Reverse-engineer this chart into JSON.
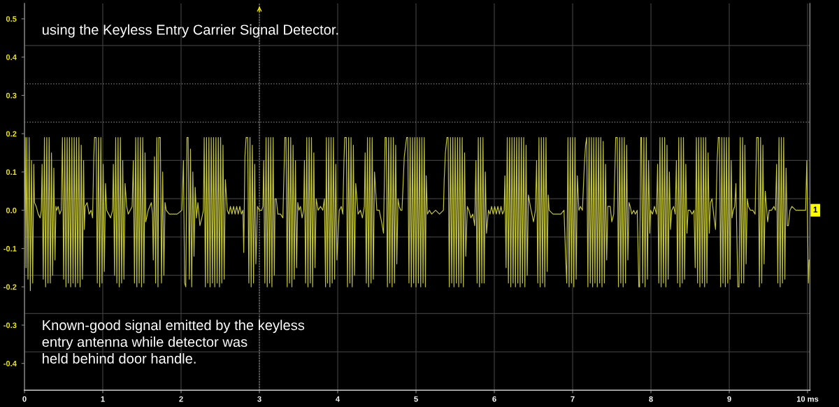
{
  "chart_data": {
    "type": "line",
    "xlim": [
      0,
      10.03
    ],
    "ylim": [
      -0.47,
      0.54
    ],
    "xticks": [
      0,
      1,
      2,
      3,
      4,
      5,
      6,
      7,
      8,
      9,
      {
        "value": 10,
        "label": "10 ms"
      }
    ],
    "yticks": [
      0.5,
      0.4,
      0.3,
      0.2,
      0.1,
      {
        "value": 0,
        "label": "0.0"
      },
      -0.1,
      -0.2,
      -0.3,
      -0.4
    ],
    "grid": "x",
    "ref_lines": [
      {
        "axis": "x",
        "value": 3,
        "color": "#9a9a9a",
        "line_style": "dotted"
      },
      {
        "axis": "y",
        "value": 0.43,
        "color": "#3c3c3c",
        "line_style": "solid"
      },
      {
        "axis": "y",
        "value": 0.33,
        "color": "#8c8c8c",
        "line_style": "dotted"
      },
      {
        "axis": "y",
        "value": 0.23,
        "color": "#8c8c8c",
        "line_style": "dotted"
      },
      {
        "axis": "y",
        "value": 0.13,
        "color": "#3c3c3c",
        "line_style": "solid"
      },
      {
        "axis": "y",
        "value": 0.03,
        "color": "#3c3c3c",
        "line_style": "solid"
      },
      {
        "axis": "y",
        "value": -0.07,
        "color": "#3c3c3c",
        "line_style": "solid"
      },
      {
        "axis": "y",
        "value": -0.17,
        "color": "#3c3c3c",
        "line_style": "solid"
      },
      {
        "axis": "y",
        "value": -0.27,
        "color": "#3c3c3c",
        "line_style": "solid"
      },
      {
        "axis": "y",
        "value": -0.37,
        "color": "#3c3c3c",
        "line_style": "solid"
      }
    ],
    "annotations": [
      "using the Keyless Entry Carrier Signal Detector.",
      "Known-good signal emitted by the keyless\nentry antenna while detector was\nheld behind door handle.",
      {
        "text": "1",
        "y": 0
      }
    ],
    "series": [
      {
        "color": "#c4c43a",
        "x": [
          0.0,
          0.01,
          0.02,
          0.03,
          0.045,
          0.06,
          0.075,
          0.09,
          0.105,
          0.119,
          0.128,
          0.15,
          0.175,
          0.2,
          0.215,
          0.225,
          0.24,
          0.255,
          0.27,
          0.285,
          0.3,
          0.315,
          0.33,
          0.345,
          0.36,
          0.375,
          0.39,
          0.402,
          0.41,
          0.43,
          0.45,
          0.47,
          0.485,
          0.5,
          0.515,
          0.53,
          0.545,
          0.56,
          0.575,
          0.59,
          0.605,
          0.62,
          0.635,
          0.65,
          0.665,
          0.68,
          0.695,
          0.71,
          0.725,
          0.74,
          0.755,
          0.765,
          0.775,
          0.8,
          0.825,
          0.85,
          0.87,
          0.885,
          0.895,
          0.915,
          0.93,
          0.945,
          0.96,
          0.975,
          0.99,
          1.005,
          1.02,
          1.035,
          1.05,
          1.075,
          1.1,
          1.125,
          1.135,
          1.15,
          1.165,
          1.18,
          1.195,
          1.21,
          1.225,
          1.24,
          1.255,
          1.27,
          1.285,
          1.305,
          1.325,
          1.35,
          1.375,
          1.39,
          1.405,
          1.42,
          1.435,
          1.45,
          1.465,
          1.48,
          1.495,
          1.51,
          1.525,
          1.54,
          1.548,
          1.56,
          1.58,
          1.6,
          1.62,
          1.635,
          1.645,
          1.66,
          1.675,
          1.69,
          1.705,
          1.715,
          1.735,
          1.75,
          1.765,
          1.78,
          1.795,
          1.81,
          1.85,
          1.95,
          2.01,
          2.03,
          2.045,
          2.06,
          2.075,
          2.09,
          2.105,
          2.12,
          2.135,
          2.15,
          2.165,
          2.18,
          2.197,
          2.215,
          2.24,
          2.265,
          2.285,
          2.295,
          2.31,
          2.325,
          2.34,
          2.355,
          2.37,
          2.385,
          2.4,
          2.415,
          2.43,
          2.445,
          2.46,
          2.475,
          2.49,
          2.505,
          2.52,
          2.535,
          2.55,
          2.565,
          2.59,
          2.61,
          2.63,
          2.65,
          2.67,
          2.69,
          2.71,
          2.73,
          2.75,
          2.77,
          2.79,
          2.8,
          2.815,
          2.83,
          2.85,
          2.865,
          2.88,
          2.895,
          2.91,
          2.925,
          2.94,
          2.955,
          2.975,
          3.0,
          3.03,
          3.045,
          3.055,
          3.07,
          3.085,
          3.1,
          3.115,
          3.13,
          3.145,
          3.16,
          3.175,
          3.19,
          3.2,
          3.215,
          3.235,
          3.27,
          3.3,
          3.325,
          3.34,
          3.355,
          3.37,
          3.385,
          3.4,
          3.415,
          3.43,
          3.445,
          3.46,
          3.475,
          3.49,
          3.505,
          3.525,
          3.545,
          3.565,
          3.575,
          3.59,
          3.605,
          3.62,
          3.635,
          3.65,
          3.665,
          3.68,
          3.695,
          3.71,
          3.725,
          3.75,
          3.78,
          3.81,
          3.83,
          3.845,
          3.855,
          3.87,
          3.885,
          3.9,
          3.915,
          3.93,
          3.945,
          3.96,
          3.975,
          3.99,
          4.02,
          4.045,
          4.065,
          4.08,
          4.09,
          4.11,
          4.125,
          4.14,
          4.155,
          4.17,
          4.185,
          4.2,
          4.215,
          4.23,
          4.26,
          4.29,
          4.315,
          4.34,
          4.35,
          4.365,
          4.38,
          4.395,
          4.41,
          4.425,
          4.44,
          4.455,
          4.47,
          4.5,
          4.53,
          4.56,
          4.585,
          4.605,
          4.62,
          4.635,
          4.65,
          4.665,
          4.68,
          4.695,
          4.71,
          4.725,
          4.74,
          4.755,
          4.77,
          4.785,
          4.805,
          4.821,
          4.85,
          4.88,
          4.895,
          4.91,
          4.925,
          4.94,
          4.955,
          4.97,
          4.985,
          5.0,
          5.015,
          5.03,
          5.045,
          5.06,
          5.075,
          5.09,
          5.105,
          5.12,
          5.13,
          5.145,
          5.17,
          5.2,
          5.25,
          5.3,
          5.35,
          5.36,
          5.375,
          5.395,
          5.41,
          5.425,
          5.44,
          5.455,
          5.47,
          5.485,
          5.5,
          5.515,
          5.53,
          5.545,
          5.56,
          5.575,
          5.59,
          5.605,
          5.62,
          5.635,
          5.655,
          5.675,
          5.7,
          5.725,
          5.75,
          5.765,
          5.78,
          5.795,
          5.81,
          5.825,
          5.84,
          5.855,
          5.87,
          5.885,
          5.9,
          5.925,
          5.945,
          5.965,
          5.985,
          6.005,
          6.025,
          6.045,
          6.065,
          6.085,
          6.105,
          6.125,
          6.135,
          6.15,
          6.165,
          6.18,
          6.195,
          6.21,
          6.225,
          6.24,
          6.255,
          6.27,
          6.285,
          6.3,
          6.315,
          6.33,
          6.345,
          6.36,
          6.375,
          6.39,
          6.405,
          6.42,
          6.435,
          6.46,
          6.48,
          6.5,
          6.525,
          6.54,
          6.555,
          6.57,
          6.585,
          6.6,
          6.615,
          6.63,
          6.645,
          6.66,
          6.675,
          6.688,
          6.7,
          6.75,
          6.8,
          6.85,
          6.89,
          6.91,
          6.925,
          6.94,
          6.955,
          6.97,
          6.985,
          7.0,
          7.015,
          7.03,
          7.045,
          7.06,
          7.08,
          7.1,
          7.125,
          7.15,
          7.165,
          7.18,
          7.195,
          7.21,
          7.225,
          7.24,
          7.255,
          7.27,
          7.285,
          7.3,
          7.315,
          7.33,
          7.345,
          7.36,
          7.375,
          7.39,
          7.405,
          7.42,
          7.435,
          7.45,
          7.48,
          7.5,
          7.525,
          7.55,
          7.57,
          7.585,
          7.6,
          7.615,
          7.63,
          7.645,
          7.66,
          7.675,
          7.69,
          7.705,
          7.72,
          7.735,
          7.755,
          7.78,
          7.8,
          7.825,
          7.845,
          7.855,
          7.87,
          7.88,
          7.895,
          7.91,
          7.925,
          7.94,
          7.955,
          7.97,
          7.985,
          7.995,
          8.02,
          8.045,
          8.07,
          8.085,
          8.1,
          8.115,
          8.13,
          8.145,
          8.16,
          8.175,
          8.19,
          8.205,
          8.22,
          8.235,
          8.25,
          8.265,
          8.29,
          8.31,
          8.325,
          8.34,
          8.355,
          8.37,
          8.385,
          8.4,
          8.415,
          8.43,
          8.445,
          8.46,
          8.475,
          8.5,
          8.525,
          8.55,
          8.565,
          8.58,
          8.595,
          8.61,
          8.625,
          8.64,
          8.655,
          8.67,
          8.685,
          8.7,
          8.715,
          8.73,
          8.745,
          8.76,
          8.78,
          8.8,
          8.825,
          8.845,
          8.86,
          8.875,
          8.89,
          8.905,
          8.92,
          8.935,
          8.95,
          8.965,
          8.98,
          8.995,
          9.01,
          9.025,
          9.035,
          9.05,
          9.07,
          9.085,
          9.1,
          9.11,
          9.125,
          9.14,
          9.155,
          9.17,
          9.185,
          9.2,
          9.215,
          9.23,
          9.245,
          9.27,
          9.3,
          9.33,
          9.35,
          9.37,
          9.385,
          9.4,
          9.415,
          9.43,
          9.445,
          9.46,
          9.475,
          9.49,
          9.51,
          9.54,
          9.57,
          9.59,
          9.605,
          9.62,
          9.635,
          9.65,
          9.665,
          9.68,
          9.695,
          9.71,
          9.725,
          9.74,
          9.755,
          9.775,
          9.8,
          9.85,
          9.9,
          9.95,
          9.975,
          9.99,
          10.01,
          10.02
        ],
        "values": [
          0.0,
          0.19,
          -0.15,
          0.19,
          -0.18,
          0.19,
          -0.21,
          0.13,
          -0.19,
          0.12,
          0.02,
          0.01,
          -0.01,
          -0.02,
          0.0,
          0.12,
          -0.18,
          0.19,
          -0.2,
          0.19,
          -0.19,
          0.19,
          -0.19,
          0.15,
          -0.17,
          0.11,
          -0.13,
          0.01,
          0.0,
          0.01,
          -0.01,
          0.0,
          0.19,
          -0.18,
          0.19,
          -0.2,
          0.19,
          -0.19,
          0.19,
          -0.2,
          0.19,
          -0.19,
          0.19,
          -0.2,
          0.19,
          -0.19,
          0.19,
          -0.2,
          0.17,
          -0.18,
          0.13,
          -0.05,
          0.01,
          0.02,
          -0.01,
          0.0,
          -0.02,
          0.14,
          0.19,
          0.19,
          -0.19,
          0.19,
          -0.2,
          0.19,
          -0.19,
          0.12,
          -0.16,
          0.07,
          0.0,
          -0.01,
          -0.02,
          0.0,
          0.12,
          -0.17,
          0.19,
          -0.19,
          0.19,
          -0.2,
          0.19,
          -0.19,
          0.13,
          -0.18,
          0.07,
          0.01,
          -0.01,
          0.0,
          0.01,
          0.13,
          -0.19,
          0.19,
          -0.2,
          0.19,
          -0.19,
          0.19,
          -0.2,
          0.19,
          -0.19,
          0.15,
          -0.03,
          -0.02,
          0.0,
          0.01,
          0.02,
          -0.01,
          -0.13,
          0.14,
          -0.19,
          0.19,
          -0.2,
          0.19,
          0.19,
          -0.19,
          0.1,
          -0.17,
          0.02,
          0.0,
          -0.01,
          -0.01,
          0.0,
          0.13,
          -0.19,
          -0.2,
          0.19,
          0.19,
          -0.18,
          0.16,
          -0.2,
          0.1,
          -0.12,
          0.06,
          -0.02,
          0.02,
          -0.04,
          -0.02,
          0.0,
          0.19,
          -0.2,
          0.19,
          -0.19,
          0.19,
          -0.2,
          0.19,
          -0.19,
          0.19,
          -0.2,
          0.19,
          -0.19,
          0.19,
          -0.2,
          0.19,
          -0.19,
          0.17,
          -0.18,
          0.08,
          0.0,
          -0.01,
          0.01,
          -0.01,
          0.01,
          -0.01,
          0.01,
          -0.01,
          0.01,
          -0.01,
          0.0,
          -0.11,
          0.14,
          0.19,
          0.19,
          -0.19,
          0.19,
          -0.2,
          0.17,
          -0.19,
          0.12,
          -0.14,
          0.01,
          0.0,
          0.0,
          0.01,
          0.13,
          -0.19,
          0.19,
          -0.2,
          0.19,
          -0.19,
          0.19,
          -0.2,
          0.19,
          -0.17,
          0.03,
          0.03,
          -0.01,
          -0.01,
          -0.02,
          0.19,
          0.19,
          -0.2,
          0.19,
          -0.19,
          0.19,
          -0.2,
          0.17,
          -0.18,
          0.13,
          -0.15,
          0.02,
          0.0,
          0.01,
          -0.02,
          0.0,
          0.13,
          -0.19,
          0.19,
          -0.2,
          0.19,
          -0.19,
          0.19,
          -0.2,
          0.15,
          -0.15,
          0.03,
          0.0,
          0.01,
          0.0,
          0.03,
          -0.2,
          0.19,
          -0.19,
          0.19,
          -0.2,
          0.19,
          -0.19,
          0.19,
          -0.18,
          0.12,
          -0.13,
          0.0,
          0.01,
          -0.01,
          0.13,
          0.19,
          0.19,
          -0.2,
          0.19,
          -0.19,
          0.19,
          -0.2,
          0.17,
          -0.17,
          0.07,
          -0.01,
          0.0,
          -0.02,
          0.01,
          0.15,
          -0.19,
          0.19,
          -0.2,
          0.19,
          -0.19,
          0.19,
          -0.18,
          0.1,
          0.0,
          0.0,
          -0.03,
          -0.06,
          0.19,
          0.19,
          -0.2,
          0.19,
          -0.19,
          0.19,
          -0.2,
          0.19,
          -0.19,
          0.17,
          -0.14,
          0.03,
          0.01,
          0.0,
          0.0,
          0.14,
          0.19,
          0.19,
          -0.19,
          0.19,
          -0.2,
          0.19,
          -0.19,
          0.19,
          -0.2,
          0.19,
          -0.19,
          0.19,
          -0.2,
          0.19,
          -0.19,
          0.19,
          -0.2,
          0.09,
          -0.01,
          0.0,
          -0.01,
          0.0,
          -0.01,
          0.0,
          0.08,
          0.15,
          0.19,
          0.19,
          -0.2,
          0.19,
          -0.19,
          0.19,
          -0.2,
          0.19,
          -0.19,
          0.19,
          -0.2,
          0.19,
          -0.19,
          0.19,
          -0.2,
          0.15,
          -0.12,
          0.01,
          0.0,
          -0.02,
          -0.01,
          -0.04,
          0.13,
          -0.19,
          0.19,
          -0.2,
          0.19,
          -0.19,
          0.19,
          -0.19,
          0.1,
          -0.06,
          0.0,
          -0.01,
          0.01,
          -0.01,
          0.01,
          -0.01,
          0.01,
          -0.01,
          0.01,
          -0.01,
          0.0,
          0.09,
          -0.15,
          0.19,
          -0.19,
          0.19,
          -0.2,
          0.19,
          -0.19,
          0.19,
          -0.2,
          0.19,
          -0.19,
          0.19,
          -0.2,
          0.19,
          -0.19,
          0.19,
          -0.2,
          0.17,
          -0.17,
          0.04,
          0.01,
          -0.01,
          -0.03,
          0.0,
          0.13,
          -0.19,
          0.19,
          -0.2,
          0.19,
          -0.19,
          0.19,
          -0.2,
          0.19,
          -0.16,
          0.04,
          0.0,
          -0.01,
          -0.01,
          -0.01,
          0.0,
          -0.12,
          -0.19,
          0.19,
          -0.2,
          0.19,
          -0.19,
          0.19,
          -0.2,
          0.19,
          -0.18,
          0.09,
          0.0,
          0.01,
          0.0,
          0.12,
          0.17,
          0.19,
          -0.2,
          0.19,
          -0.19,
          0.19,
          -0.2,
          0.19,
          -0.19,
          0.19,
          -0.2,
          0.19,
          -0.19,
          0.19,
          -0.2,
          0.18,
          -0.19,
          0.12,
          -0.13,
          0.01,
          0.01,
          -0.03,
          -0.01,
          0.19,
          0.19,
          -0.2,
          0.19,
          -0.19,
          0.19,
          -0.2,
          0.19,
          -0.19,
          0.17,
          -0.13,
          0.02,
          0.01,
          -0.01,
          0.0,
          -0.01,
          0.0,
          -0.2,
          -0.2,
          0.19,
          0.19,
          -0.19,
          0.19,
          -0.2,
          0.19,
          -0.18,
          0.13,
          -0.06,
          0.0,
          -0.01,
          0.01,
          -0.01,
          0.12,
          -0.19,
          0.19,
          -0.2,
          0.19,
          -0.19,
          0.19,
          -0.2,
          0.17,
          -0.18,
          0.1,
          -0.05,
          0.0,
          0.01,
          -0.01,
          0.13,
          -0.19,
          0.19,
          -0.2,
          0.19,
          -0.19,
          0.19,
          -0.18,
          0.12,
          -0.06,
          0.0,
          0.0,
          -0.01,
          0.0,
          -0.15,
          0.19,
          -0.19,
          0.19,
          -0.2,
          0.19,
          -0.19,
          0.19,
          -0.2,
          0.19,
          -0.19,
          0.15,
          -0.06,
          0.02,
          0.03,
          -0.01,
          -0.05,
          0.13,
          0.19,
          0.19,
          -0.2,
          0.19,
          -0.19,
          0.19,
          -0.2,
          0.19,
          -0.19,
          0.19,
          -0.18,
          0.13,
          -0.02,
          0.0,
          0.01,
          0.07,
          -0.1,
          -0.2,
          -0.2,
          0.19,
          -0.19,
          0.19,
          -0.19,
          0.17,
          -0.14,
          0.03,
          0.01,
          0.0,
          0.0,
          -0.01,
          0.19,
          0.19,
          -0.2,
          0.19,
          -0.19,
          0.17,
          -0.14,
          0.05,
          0.01,
          -0.03,
          0.0,
          0.0,
          0.01,
          0.0,
          0.12,
          -0.19,
          0.19,
          -0.2,
          0.19,
          -0.19,
          0.19,
          -0.18,
          0.11,
          -0.04,
          -0.04,
          0.0,
          0.01,
          0.0,
          0.0,
          0.0,
          0.0,
          0.13,
          -0.19,
          -0.13
        ]
      }
    ]
  }
}
